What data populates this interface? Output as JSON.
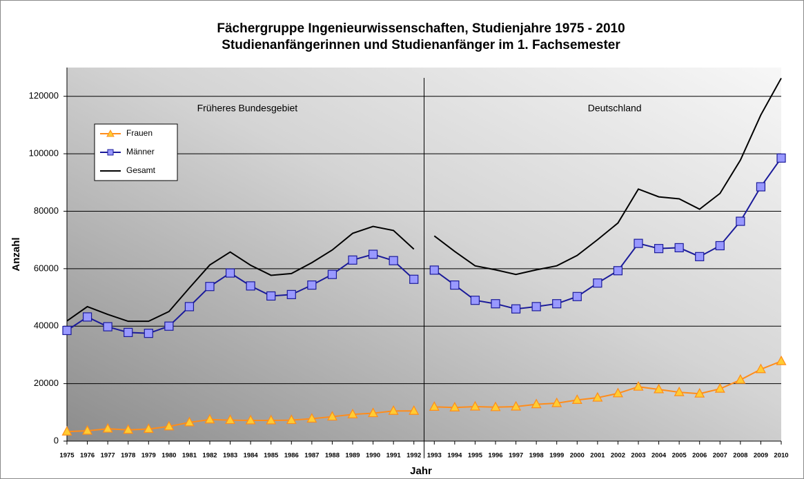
{
  "chart_data": {
    "type": "line",
    "title": "Fächergruppe Ingenieurwissenschaften, Studienjahre 1975 - 2010",
    "subtitle": "Studienanfängerinnen und Studienanfänger im 1. Fachsemester",
    "xlabel": "Jahr",
    "ylabel": "Anzahl",
    "x": [
      1975,
      1976,
      1977,
      1978,
      1979,
      1980,
      1981,
      1982,
      1983,
      1984,
      1985,
      1986,
      1987,
      1988,
      1989,
      1990,
      1991,
      1992,
      1993,
      1994,
      1995,
      1996,
      1997,
      1998,
      1999,
      2000,
      2001,
      2002,
      2003,
      2004,
      2005,
      2006,
      2007,
      2008,
      2009,
      2010
    ],
    "xlim": [
      1975,
      2010
    ],
    "ylim": [
      0,
      130000
    ],
    "yticks": [
      0,
      20000,
      40000,
      60000,
      80000,
      100000,
      120000
    ],
    "grid": true,
    "legend": "upper left",
    "regions": [
      {
        "label": "Früheres Bundesgebiet",
        "from": 1975,
        "to": 1992
      },
      {
        "label": "Deutschland",
        "from": 1993,
        "to": 2010
      }
    ],
    "series": [
      {
        "name": "Frauen",
        "color": "#ff8c1a",
        "marker": "triangle",
        "marker_color": "#ffcc33",
        "values": [
          3300,
          3600,
          4300,
          3900,
          4200,
          5100,
          6500,
          7500,
          7300,
          7200,
          7200,
          7300,
          7800,
          8500,
          9300,
          9700,
          10500,
          10500,
          11900,
          11700,
          12000,
          11800,
          12000,
          12800,
          13200,
          14300,
          15100,
          16600,
          18900,
          18000,
          17000,
          16500,
          18200,
          21300,
          25000,
          27800
        ]
      },
      {
        "name": "Männer",
        "color": "#1a1a99",
        "marker": "square",
        "marker_color": "#9999ff",
        "values": [
          38500,
          43200,
          39800,
          37800,
          37500,
          40000,
          46800,
          53800,
          58500,
          54000,
          50500,
          51000,
          54300,
          58000,
          63000,
          65000,
          62800,
          56300,
          59500,
          54300,
          49000,
          47800,
          46000,
          46800,
          47800,
          50300,
          55000,
          59300,
          68800,
          67000,
          67300,
          64200,
          68000,
          76500,
          88500,
          98500
        ]
      },
      {
        "name": "Gesamt",
        "color": "#000000",
        "marker": null,
        "marker_color": null,
        "values": [
          41800,
          46800,
          44100,
          41700,
          41700,
          45100,
          53300,
          61300,
          65800,
          61200,
          57700,
          58300,
          62100,
          66500,
          72300,
          74700,
          73300,
          66800,
          71400,
          66000,
          61000,
          59600,
          58000,
          59600,
          61000,
          64600,
          70100,
          75900,
          87700,
          85000,
          84300,
          80700,
          86200,
          97800,
          113500,
          126300
        ]
      }
    ]
  }
}
